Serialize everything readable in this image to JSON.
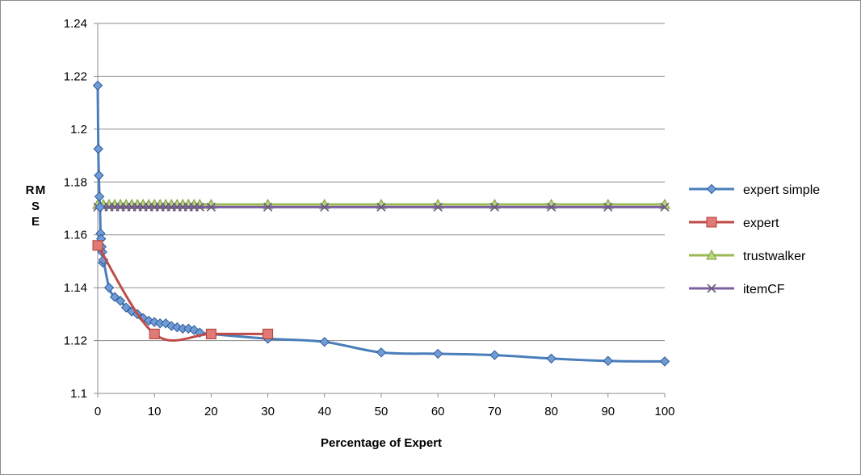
{
  "chart_data": {
    "type": "line",
    "xlabel": "Percentage of Expert",
    "ylabel": "RMSE",
    "xlim": [
      0,
      100
    ],
    "ylim": [
      1.1,
      1.24
    ],
    "x_ticks": [
      "0",
      "10",
      "20",
      "30",
      "40",
      "50",
      "60",
      "70",
      "80",
      "90",
      "100"
    ],
    "y_ticks": [
      "1.1",
      "1.12",
      "1.14",
      "1.16",
      "1.18",
      "1.2",
      "1.22",
      "1.24"
    ],
    "grid": "horizontal",
    "legend_position": "right",
    "series": [
      {
        "name": "expert simple",
        "color": "#4a7ebb",
        "marker": "diamond",
        "x": [
          0,
          0.1,
          0.2,
          0.3,
          0.4,
          0.5,
          0.6,
          0.7,
          0.8,
          0.9,
          1,
          2,
          3,
          4,
          5,
          6,
          7,
          8,
          9,
          10,
          11,
          12,
          13,
          14,
          15,
          16,
          17,
          18,
          20,
          30,
          40,
          50,
          60,
          70,
          80,
          90,
          100
        ],
        "y": [
          1.2165,
          1.1925,
          1.1825,
          1.1745,
          1.1705,
          1.1605,
          1.1585,
          1.1555,
          1.1535,
          1.1495,
          1.1505,
          1.14,
          1.1365,
          1.135,
          1.1325,
          1.131,
          1.13,
          1.1285,
          1.1275,
          1.127,
          1.1265,
          1.1265,
          1.1255,
          1.125,
          1.1245,
          1.1245,
          1.124,
          1.123,
          1.1225,
          1.1207,
          1.1195,
          1.1155,
          1.115,
          1.1145,
          1.1132,
          1.1123,
          1.1121
        ]
      },
      {
        "name": "expert",
        "color": "#be4b48",
        "marker": "square",
        "x": [
          0,
          10,
          20,
          30
        ],
        "y": [
          1.156,
          1.1225,
          1.1225,
          1.1225
        ]
      },
      {
        "name": "trustwalker",
        "color": "#98b954",
        "marker": "triangle",
        "x": [
          0,
          1,
          2,
          3,
          4,
          5,
          6,
          7,
          8,
          9,
          10,
          11,
          12,
          13,
          14,
          15,
          16,
          17,
          18,
          20,
          30,
          40,
          50,
          60,
          70,
          80,
          90,
          100
        ],
        "y": [
          1.1715,
          1.1715,
          1.1715,
          1.1715,
          1.1715,
          1.1715,
          1.1715,
          1.1715,
          1.1715,
          1.1715,
          1.1715,
          1.1715,
          1.1715,
          1.1715,
          1.1715,
          1.1715,
          1.1715,
          1.1715,
          1.1715,
          1.1715,
          1.1715,
          1.1715,
          1.1715,
          1.1715,
          1.1715,
          1.1715,
          1.1715,
          1.1715
        ]
      },
      {
        "name": "itemCF",
        "color": "#7d60a0",
        "marker": "x",
        "x": [
          0,
          1,
          2,
          3,
          4,
          5,
          6,
          7,
          8,
          9,
          10,
          11,
          12,
          13,
          14,
          15,
          16,
          17,
          18,
          20,
          30,
          40,
          50,
          60,
          70,
          80,
          90,
          100
        ],
        "y": [
          1.1705,
          1.1705,
          1.1705,
          1.1705,
          1.1705,
          1.1705,
          1.1705,
          1.1705,
          1.1705,
          1.1705,
          1.1705,
          1.1705,
          1.1705,
          1.1705,
          1.1705,
          1.1705,
          1.1705,
          1.1705,
          1.1705,
          1.1705,
          1.1705,
          1.1705,
          1.1705,
          1.1705,
          1.1705,
          1.1705,
          1.1705,
          1.1705
        ]
      }
    ]
  }
}
